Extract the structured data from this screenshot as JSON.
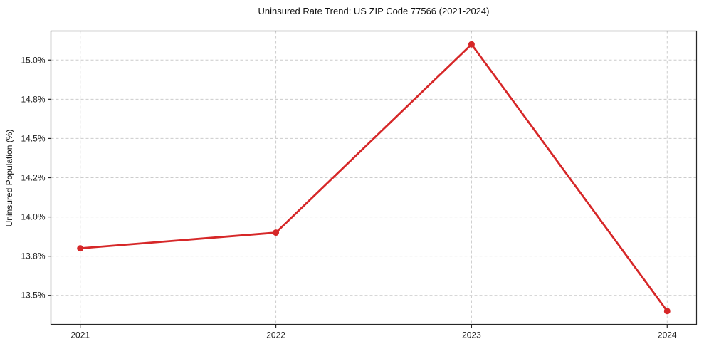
{
  "chart_data": {
    "type": "line",
    "title": "Uninsured Rate Trend: US ZIP Code 77566 (2021-2024)",
    "xlabel": "",
    "ylabel": "Uninsured Population (%)",
    "categories": [
      "2021",
      "2022",
      "2023",
      "2024"
    ],
    "series": [
      {
        "name": "Uninsured Population (%)",
        "values": [
          13.8,
          13.9,
          15.1,
          13.4
        ]
      }
    ],
    "y_ticks": [
      {
        "value": 13.5,
        "label": "13.5%"
      },
      {
        "value": 13.75,
        "label": "13.8%"
      },
      {
        "value": 14.0,
        "label": "14.0%"
      },
      {
        "value": 14.25,
        "label": "14.2%"
      },
      {
        "value": 14.5,
        "label": "14.5%"
      },
      {
        "value": 14.75,
        "label": "14.8%"
      },
      {
        "value": 15.0,
        "label": "15.0%"
      }
    ],
    "ylim": [
      13.315,
      15.185
    ],
    "grid": true,
    "grid_style": "dashed",
    "legend_position": "none",
    "line_color": "#d62728",
    "marker": "circle",
    "background": "#ffffff"
  }
}
